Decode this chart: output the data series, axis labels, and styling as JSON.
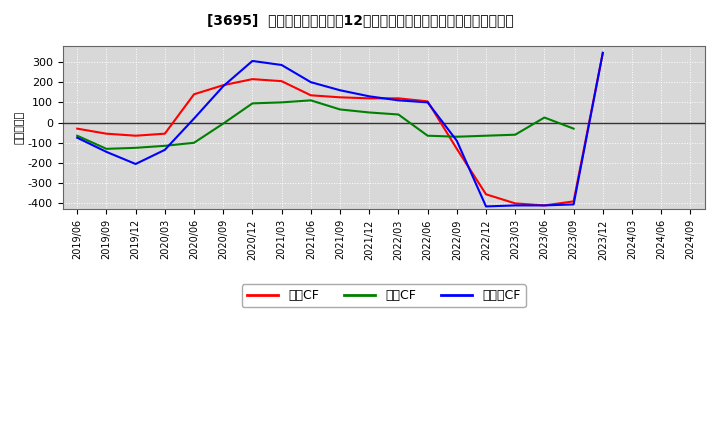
{
  "title": "[3695]  キャッシュフローの12か月移動合計の対前年同期増減額の推移",
  "ylabel": "（百万円）",
  "background_color": "#ffffff",
  "plot_bg_color": "#d8d8d8",
  "grid_color": "#ffffff",
  "ylim": [
    -430,
    380
  ],
  "yticks": [
    -400,
    -300,
    -200,
    -100,
    0,
    100,
    200,
    300
  ],
  "x_labels": [
    "2019/06",
    "2019/09",
    "2019/12",
    "2020/03",
    "2020/06",
    "2020/09",
    "2020/12",
    "2021/03",
    "2021/06",
    "2021/09",
    "2021/12",
    "2022/03",
    "2022/06",
    "2022/09",
    "2022/12",
    "2023/03",
    "2023/06",
    "2023/09",
    "2023/12",
    "2024/03",
    "2024/06",
    "2024/09"
  ],
  "series_order": [
    "営業CF",
    "投資CF",
    "フリーCF"
  ],
  "series": {
    "営業CF": {
      "color": "#ff0000",
      "values": [
        -30,
        -55,
        -65,
        -55,
        140,
        185,
        215,
        205,
        135,
        125,
        120,
        120,
        105,
        -130,
        -355,
        -400,
        -410,
        -390,
        345,
        null,
        null,
        null
      ]
    },
    "投資CF": {
      "color": "#008000",
      "values": [
        -65,
        -130,
        -125,
        -115,
        -100,
        -5,
        95,
        100,
        110,
        65,
        50,
        40,
        -65,
        -70,
        -65,
        -60,
        25,
        -30,
        null,
        null,
        null,
        null
      ]
    },
    "フリーCF": {
      "color": "#0000ff",
      "values": [
        -75,
        -145,
        -205,
        -135,
        20,
        180,
        305,
        285,
        200,
        160,
        130,
        110,
        100,
        -90,
        -415,
        -410,
        -410,
        -405,
        345,
        null,
        null,
        null
      ]
    }
  },
  "legend_labels": [
    "営業CF",
    "投資CF",
    "フリーCF"
  ],
  "legend_colors": [
    "#ff0000",
    "#008000",
    "#0000ff"
  ]
}
